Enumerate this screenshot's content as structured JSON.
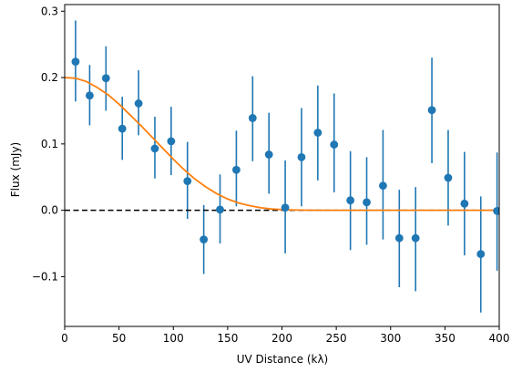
{
  "chart_data": {
    "type": "scatter",
    "title": "",
    "xlabel": "UV Distance (kλ)",
    "ylabel": "Flux (mJy)",
    "xlim": [
      0,
      400
    ],
    "ylim": [
      -0.175,
      0.31
    ],
    "xticks": [
      0,
      50,
      100,
      150,
      200,
      250,
      300,
      350,
      400
    ],
    "xtick_labels": [
      "0",
      "50",
      "100",
      "150",
      "200",
      "250",
      "300",
      "350",
      "400"
    ],
    "yticks": [
      -0.1,
      0.0,
      0.1,
      0.2,
      0.3
    ],
    "ytick_labels": [
      "−0.1",
      "0.0",
      "0.1",
      "0.2",
      "0.3"
    ],
    "grid": false,
    "legend": "none",
    "colors": {
      "points": "#1f77b4",
      "model": "#ff7f0e",
      "zero_line": "#000000"
    },
    "series": [
      {
        "type": "errorbar",
        "x": [
          10,
          23,
          38,
          53,
          68,
          83,
          98,
          113,
          128,
          143,
          158,
          173,
          188,
          203,
          218,
          233,
          248,
          263,
          278,
          293,
          308,
          323,
          338,
          353,
          368,
          383,
          398
        ],
        "y": [
          0.224,
          0.173,
          0.199,
          0.123,
          0.161,
          0.093,
          0.104,
          0.044,
          -0.044,
          0.001,
          0.061,
          0.139,
          0.084,
          0.004,
          0.08,
          0.117,
          0.099,
          0.015,
          0.012,
          0.037,
          -0.042,
          -0.042,
          0.151,
          0.049,
          0.01,
          -0.066,
          -0.001
        ],
        "yerr_low": [
          0.06,
          0.045,
          0.049,
          0.047,
          0.048,
          0.045,
          0.051,
          0.057,
          0.052,
          0.051,
          0.055,
          0.065,
          0.059,
          0.069,
          0.074,
          0.072,
          0.072,
          0.075,
          0.064,
          0.081,
          0.074,
          0.08,
          0.08,
          0.072,
          0.078,
          0.088,
          0.09
        ],
        "yerr_high": [
          0.062,
          0.046,
          0.048,
          0.048,
          0.05,
          0.048,
          0.052,
          0.059,
          0.052,
          0.053,
          0.059,
          0.063,
          0.063,
          0.071,
          0.074,
          0.071,
          0.077,
          0.074,
          0.068,
          0.084,
          0.073,
          0.077,
          0.079,
          0.072,
          0.078,
          0.087,
          0.088
        ]
      },
      {
        "type": "line",
        "x": [
          0,
          10,
          20,
          30,
          40,
          50,
          60,
          70,
          80,
          90,
          100,
          110,
          120,
          130,
          140,
          150,
          160,
          170,
          180,
          190,
          200,
          210,
          220,
          240,
          260,
          300,
          400
        ],
        "y": [
          0.2,
          0.199,
          0.194,
          0.185,
          0.174,
          0.16,
          0.144,
          0.128,
          0.111,
          0.094,
          0.077,
          0.061,
          0.047,
          0.035,
          0.025,
          0.017,
          0.011,
          0.007,
          0.004,
          0.002,
          0.001,
          0.0005,
          0.0002,
          0.0,
          0.0,
          0.0,
          0.0
        ]
      },
      {
        "type": "hline",
        "y": 0.0,
        "style": "dashed"
      }
    ]
  }
}
